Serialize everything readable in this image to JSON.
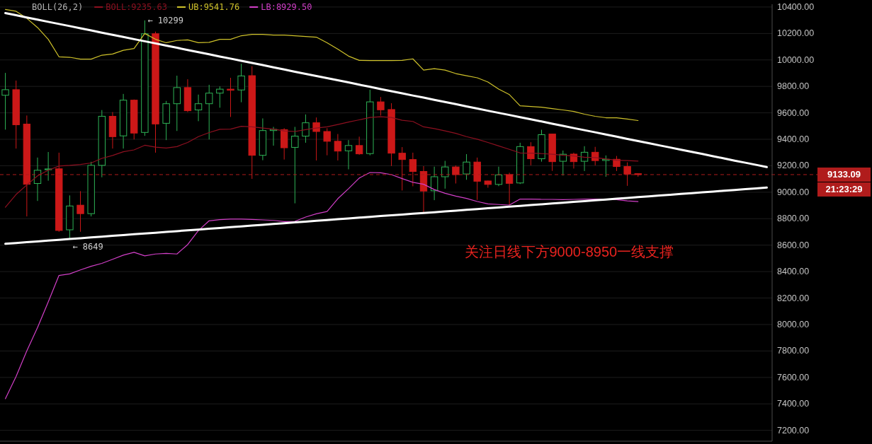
{
  "chart_data": {
    "type": "candlestick",
    "categories": [
      null,
      null,
      null,
      null,
      null,
      null,
      null,
      null,
      null,
      null,
      null,
      null,
      null,
      null,
      null,
      null,
      null,
      null,
      null,
      null,
      null,
      null,
      null,
      null,
      null,
      null,
      null,
      null,
      null,
      null,
      null,
      null,
      null,
      null,
      null,
      null,
      null,
      null,
      null,
      null,
      null,
      null,
      null,
      null,
      null,
      null,
      null,
      null,
      null,
      null,
      null,
      null,
      null,
      null,
      null,
      null,
      null,
      null,
      null,
      null,
      null,
      null,
      null,
      null,
      null,
      null,
      null,
      null,
      null,
      null,
      null,
      null
    ],
    "ohlc": [
      [
        9733,
        9902,
        9473,
        9775
      ],
      [
        9775,
        9844,
        9330,
        9510
      ],
      [
        9515,
        9580,
        8817,
        9060
      ],
      [
        9066,
        9262,
        8934,
        9166
      ],
      [
        9170,
        9304,
        9087,
        9176
      ],
      [
        9177,
        9299,
        8701,
        8711
      ],
      [
        8716,
        8976,
        8649,
        8896
      ],
      [
        8902,
        9008,
        8701,
        8838
      ],
      [
        8838,
        9230,
        8817,
        9203
      ],
      [
        9203,
        9621,
        9113,
        9574
      ],
      [
        9574,
        9606,
        9330,
        9420
      ],
      [
        9426,
        9743,
        9330,
        9696
      ],
      [
        9696,
        9701,
        9399,
        9447
      ],
      [
        9452,
        10299,
        9426,
        10198
      ],
      [
        10198,
        10214,
        9299,
        9516
      ],
      [
        9521,
        9690,
        9394,
        9669
      ],
      [
        9669,
        9881,
        9463,
        9791
      ],
      [
        9791,
        9854,
        9606,
        9616
      ],
      [
        9622,
        9738,
        9537,
        9669
      ],
      [
        9669,
        9812,
        9399,
        9749
      ],
      [
        9749,
        9800,
        9639,
        9779
      ],
      [
        9779,
        9865,
        9569,
        9771
      ],
      [
        9773,
        9971,
        9680,
        9879
      ],
      [
        9881,
        9953,
        9101,
        9279
      ],
      [
        9279,
        9558,
        9242,
        9466
      ],
      [
        9466,
        9494,
        9352,
        9475
      ],
      [
        9473,
        9484,
        9247,
        9336
      ],
      [
        9339,
        9494,
        8916,
        9424
      ],
      [
        9424,
        9588,
        9374,
        9525
      ],
      [
        9525,
        9565,
        9240,
        9459
      ],
      [
        9459,
        9484,
        9279,
        9385
      ],
      [
        9385,
        9440,
        9240,
        9311
      ],
      [
        9313,
        9394,
        9173,
        9353
      ],
      [
        9353,
        9420,
        9283,
        9290
      ],
      [
        9292,
        9775,
        9279,
        9683
      ],
      [
        9683,
        9720,
        9579,
        9623
      ],
      [
        9625,
        9673,
        9198,
        9295
      ],
      [
        9295,
        9341,
        9013,
        9247
      ],
      [
        9247,
        9299,
        9045,
        9157
      ],
      [
        9157,
        9197,
        8847,
        9009
      ],
      [
        9011,
        9193,
        8940,
        9117
      ],
      [
        9117,
        9237,
        9027,
        9191
      ],
      [
        9191,
        9203,
        9066,
        9133
      ],
      [
        9138,
        9288,
        9094,
        9228
      ],
      [
        9228,
        9262,
        8942,
        9083
      ],
      [
        9085,
        9088,
        9034,
        9059
      ],
      [
        9059,
        9193,
        9046,
        9131
      ],
      [
        9133,
        9147,
        8903,
        9067
      ],
      [
        9070,
        9374,
        9062,
        9345
      ],
      [
        9345,
        9378,
        9203,
        9253
      ],
      [
        9253,
        9472,
        9231,
        9435
      ],
      [
        9440,
        9443,
        9161,
        9231
      ],
      [
        9234,
        9315,
        9126,
        9287
      ],
      [
        9288,
        9299,
        9179,
        9231
      ],
      [
        9234,
        9348,
        9160,
        9302
      ],
      [
        9302,
        9343,
        9203,
        9239
      ],
      [
        9240,
        9278,
        9117,
        9249
      ],
      [
        9249,
        9274,
        9160,
        9194
      ],
      [
        9194,
        9226,
        9048,
        9137
      ],
      [
        9140,
        9142,
        9117,
        9133.09
      ],
      null,
      null,
      null,
      null,
      null,
      null,
      null,
      null,
      null,
      null,
      null,
      null
    ],
    "colors": [
      "#2eb356",
      "#cc1818",
      "#cc1818",
      "#2eb356",
      "#2eb356",
      "#cc1818",
      "#2eb356",
      "#cc1818",
      "#2eb356",
      "#2eb356",
      "#cc1818",
      "#2eb356",
      "#cc1818",
      "#2eb356",
      "#cc1818",
      "#2eb356",
      "#2eb356",
      "#cc1818",
      "#2eb356",
      "#2eb356",
      "#2eb356",
      "#cc1818",
      "#2eb356",
      "#cc1818",
      "#2eb356",
      "#2eb356",
      "#cc1818",
      "#2eb356",
      "#2eb356",
      "#cc1818",
      "#cc1818",
      "#cc1818",
      "#2eb356",
      "#cc1818",
      "#2eb356",
      "#cc1818",
      "#cc1818",
      "#cc1818",
      "#cc1818",
      "#cc1818",
      "#2eb356",
      "#2eb356",
      "#cc1818",
      "#2eb356",
      "#cc1818",
      "#cc1818",
      "#2eb356",
      "#cc1818",
      "#2eb356",
      "#cc1818",
      "#2eb356",
      "#cc1818",
      "#2eb356",
      "#cc1818",
      "#2eb356",
      "#cc1818",
      "#2eb356",
      "#cc1818",
      "#cc1818",
      "#cc1818",
      null,
      null,
      null,
      null,
      null,
      null,
      null,
      null,
      null,
      null,
      null,
      null
    ],
    "series": [
      {
        "type": "line",
        "name": "BOLL:9235.63",
        "color": "#8e1020",
        "values": [
          8886,
          8983,
          9055,
          9124,
          9166,
          9198,
          9203,
          9210,
          9221,
          9256,
          9278,
          9306,
          9320,
          9355,
          9341,
          9334,
          9345,
          9376,
          9420,
          9451,
          9476,
          9477,
          9498,
          9494,
          9485,
          9477,
          9464,
          9459,
          9473,
          9485,
          9494,
          9512,
          9530,
          9547,
          9565,
          9570,
          9565,
          9544,
          9535,
          9494,
          9481,
          9464,
          9445,
          9420,
          9401,
          9376,
          9350,
          9324,
          9297,
          9295,
          9292,
          9287,
          9279,
          9274,
          9265,
          9262,
          9251,
          9242,
          9239,
          9235.63,
          null,
          null,
          null,
          null,
          null,
          null,
          null,
          null,
          null,
          null,
          null,
          null
        ]
      },
      {
        "type": "line",
        "name": "UB:9541.76",
        "color": "#cfc22a",
        "values": [
          10382,
          10368,
          10315,
          10245,
          10156,
          10024,
          10020,
          10006,
          10006,
          10036,
          10045,
          10073,
          10086,
          10200,
          10156,
          10130,
          10147,
          10152,
          10130,
          10133,
          10156,
          10156,
          10183,
          10193,
          10193,
          10188,
          10188,
          10183,
          10177,
          10172,
          10130,
          10082,
          10029,
          9997,
          9995,
          9995,
          9995,
          9997,
          10008,
          9923,
          9934,
          9923,
          9897,
          9881,
          9865,
          9833,
          9780,
          9738,
          9653,
          9648,
          9643,
          9632,
          9622,
          9611,
          9590,
          9574,
          9563,
          9563,
          9553,
          9541.76,
          null,
          null,
          null,
          null,
          null,
          null,
          null,
          null,
          null,
          null,
          null,
          null
        ]
      },
      {
        "type": "line",
        "name": "LB:8929.50",
        "color": "#d23fc8",
        "values": [
          7439,
          7607,
          7801,
          7977,
          8171,
          8371,
          8383,
          8413,
          8440,
          8462,
          8493,
          8524,
          8546,
          8519,
          8533,
          8538,
          8533,
          8604,
          8710,
          8784,
          8793,
          8797,
          8797,
          8794,
          8791,
          8787,
          8778,
          8780,
          8812,
          8837,
          8854,
          8951,
          9027,
          9107,
          9149,
          9147,
          9133,
          9103,
          9075,
          9060,
          9020,
          8992,
          8971,
          8953,
          8930,
          8912,
          8907,
          8903,
          8948,
          8948,
          8946,
          8946,
          8944,
          8946,
          8948,
          8948,
          8948,
          8944,
          8935,
          8929.5,
          null,
          null,
          null,
          null,
          null,
          null,
          null,
          null,
          null,
          null,
          null,
          null
        ]
      },
      {
        "type": "line",
        "color": "#ffffff",
        "values": [
          10354,
          10338,
          10321,
          10305,
          10288,
          10272,
          10256,
          10239,
          10223,
          10206,
          10190,
          10174,
          10157,
          10141,
          10125,
          10108,
          10092,
          10075,
          10059,
          10043,
          10026,
          10010,
          9993,
          9977,
          9961,
          9944,
          9928,
          9911,
          9895,
          9879,
          9862,
          9846,
          9830,
          9813,
          9797,
          9780,
          9764,
          9748,
          9731,
          9715,
          9698,
          9682,
          9666,
          9649,
          9633,
          9616,
          9600,
          9584,
          9567,
          9551,
          9535,
          9518,
          9502,
          9485,
          9469,
          9453,
          9436,
          9420,
          9403,
          9387,
          9371,
          9354,
          9338,
          9321,
          9305,
          9289,
          9272,
          9256,
          9239,
          9223,
          9207,
          9190
        ]
      },
      {
        "type": "line",
        "color": "#ffffff",
        "values": [
          8610,
          8616,
          8622,
          8628,
          8634,
          8640,
          8646,
          8652,
          8658,
          8664,
          8670,
          8676,
          8682,
          8688,
          8694,
          8700,
          8706,
          8712,
          8718,
          8724,
          8730,
          8736,
          8742,
          8748,
          8754,
          8760,
          8766,
          8772,
          8778,
          8784,
          8790,
          8796,
          8802,
          8808,
          8814,
          8820,
          8825,
          8831,
          8837,
          8843,
          8849,
          8855,
          8861,
          8867,
          8873,
          8879,
          8885,
          8891,
          8897,
          8903,
          8909,
          8915,
          8921,
          8927,
          8933,
          8939,
          8945,
          8951,
          8957,
          8963,
          8969,
          8975,
          8981,
          8987,
          8993,
          8999,
          9005,
          9011,
          9017,
          9023,
          9029,
          9035
        ]
      }
    ],
    "ylim": [
      7118,
      10421
    ],
    "yticks": [
      {
        "value": 7200,
        "label": "7200.00"
      },
      {
        "value": 7400,
        "label": "7400.00"
      },
      {
        "value": 7600,
        "label": "7600.00"
      },
      {
        "value": 7800,
        "label": "7800.00"
      },
      {
        "value": 8000,
        "label": "8000.00"
      },
      {
        "value": 8200,
        "label": "8200.00"
      },
      {
        "value": 8400,
        "label": "8400.00"
      },
      {
        "value": 8600,
        "label": "8600.00"
      },
      {
        "value": 8800,
        "label": "8800.00"
      },
      {
        "value": 9000,
        "label": "9000.00"
      },
      {
        "value": 9200,
        "label": "9200.00"
      },
      {
        "value": 9400,
        "label": "9400.00"
      },
      {
        "value": 9600,
        "label": "9600.00"
      },
      {
        "value": 9800,
        "label": "9800.00"
      },
      {
        "value": 10000,
        "label": "10000.00"
      },
      {
        "value": 10200,
        "label": "10200.00"
      },
      {
        "value": 10400,
        "label": "10400.00"
      }
    ],
    "grid": "y",
    "tick_labels": "y",
    "legend": "top left",
    "legend_title": "BOLL(26,2)",
    "ref_lines": [
      {
        "axis": "y",
        "value": 9133.09,
        "label": "9133.09",
        "color": "#b01c1c",
        "line_style": "dashed"
      }
    ],
    "annotations": [
      "关注日线下方9000-8950一线支撑",
      "21:23:29",
      "← 10299",
      "← 8649"
    ]
  }
}
